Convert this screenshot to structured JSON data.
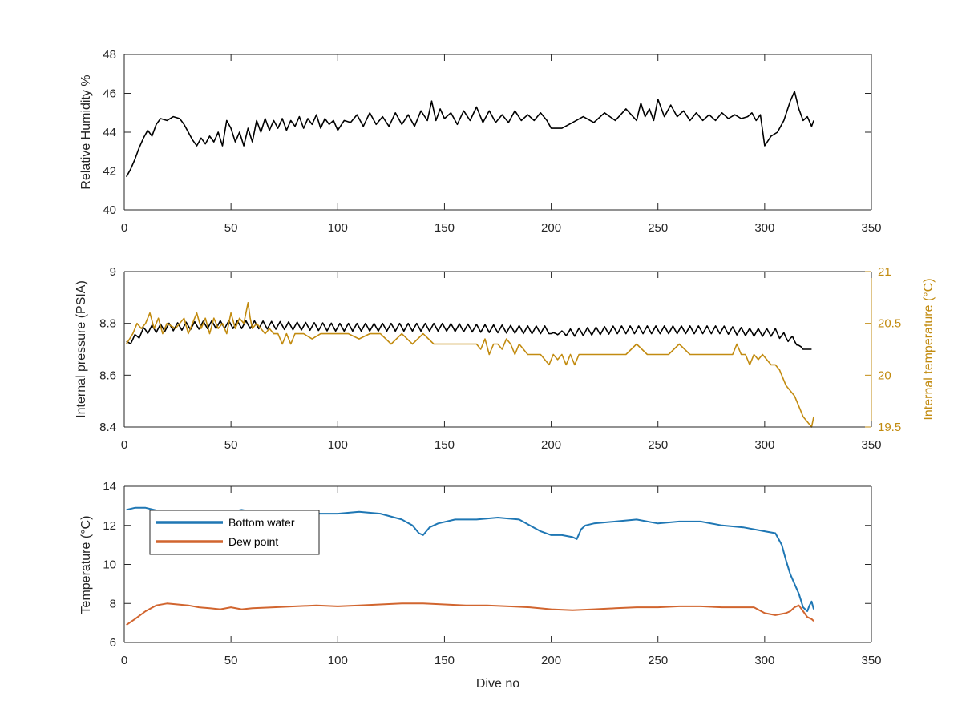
{
  "colors": {
    "black": "#000000",
    "temperature_right": "#C28B10",
    "bottom_water": "#1F77B4",
    "dew_point": "#D1652F",
    "axis": "#262626"
  },
  "chart_data": [
    {
      "type": "line",
      "id": "humidity",
      "title": "",
      "xlabel": "",
      "ylabel": "Relative Humidity %",
      "xlim": [
        0,
        350
      ],
      "ylim": [
        40,
        48
      ],
      "xticks": [
        0,
        50,
        100,
        150,
        200,
        250,
        300,
        350
      ],
      "yticks": [
        40,
        42,
        44,
        46,
        48
      ],
      "series": [
        {
          "color_key": "black",
          "x": [
            1,
            3,
            5,
            7,
            9,
            11,
            13,
            15,
            17,
            20,
            23,
            26,
            28,
            30,
            32,
            34,
            36,
            38,
            40,
            42,
            44,
            46,
            48,
            50,
            52,
            54,
            56,
            58,
            60,
            62,
            64,
            66,
            68,
            70,
            72,
            74,
            76,
            78,
            80,
            82,
            84,
            86,
            88,
            90,
            92,
            94,
            96,
            98,
            100,
            103,
            106,
            109,
            112,
            115,
            118,
            121,
            124,
            127,
            130,
            133,
            136,
            139,
            142,
            144,
            146,
            148,
            150,
            153,
            156,
            159,
            162,
            165,
            168,
            171,
            174,
            177,
            180,
            183,
            186,
            189,
            192,
            195,
            198,
            200,
            205,
            210,
            215,
            220,
            225,
            230,
            235,
            240,
            242,
            244,
            246,
            248,
            250,
            253,
            256,
            259,
            262,
            265,
            268,
            271,
            274,
            277,
            280,
            283,
            286,
            289,
            292,
            294,
            296,
            298,
            300,
            303,
            306,
            309,
            312,
            314,
            316,
            318,
            320,
            322,
            323
          ],
          "y": [
            41.7,
            42.1,
            42.6,
            43.2,
            43.7,
            44.1,
            43.8,
            44.4,
            44.7,
            44.6,
            44.8,
            44.7,
            44.4,
            44.0,
            43.6,
            43.3,
            43.7,
            43.4,
            43.8,
            43.5,
            44.0,
            43.3,
            44.6,
            44.2,
            43.5,
            44.0,
            43.3,
            44.2,
            43.5,
            44.6,
            44.0,
            44.7,
            44.1,
            44.6,
            44.2,
            44.7,
            44.1,
            44.6,
            44.3,
            44.8,
            44.2,
            44.7,
            44.4,
            44.9,
            44.2,
            44.7,
            44.4,
            44.6,
            44.1,
            44.6,
            44.5,
            44.9,
            44.3,
            45.0,
            44.4,
            44.8,
            44.3,
            45.0,
            44.4,
            44.9,
            44.3,
            45.1,
            44.6,
            45.6,
            44.6,
            45.2,
            44.7,
            45.0,
            44.4,
            45.1,
            44.6,
            45.3,
            44.5,
            45.1,
            44.5,
            44.9,
            44.5,
            45.1,
            44.6,
            44.9,
            44.6,
            45.0,
            44.6,
            44.2,
            44.2,
            44.5,
            44.8,
            44.5,
            45.0,
            44.6,
            45.2,
            44.6,
            45.5,
            44.8,
            45.2,
            44.6,
            45.7,
            44.8,
            45.4,
            44.8,
            45.1,
            44.6,
            45.0,
            44.6,
            44.9,
            44.6,
            45.0,
            44.7,
            44.9,
            44.7,
            44.8,
            45.0,
            44.6,
            44.9,
            43.3,
            43.8,
            44.0,
            44.6,
            45.6,
            46.1,
            45.2,
            44.6,
            44.8,
            44.3,
            44.6
          ]
        }
      ]
    },
    {
      "type": "line",
      "id": "pressure",
      "title": "",
      "xlabel": "",
      "ylabel": "Internal pressure (PSIA)",
      "ylabel_right": "Internal temperature (°C)",
      "xlim": [
        0,
        350
      ],
      "ylim": [
        8.4,
        9
      ],
      "ylim_right": [
        19.5,
        21
      ],
      "xticks": [
        0,
        50,
        100,
        150,
        200,
        250,
        300,
        350
      ],
      "yticks": [
        8.4,
        8.6,
        8.8,
        9
      ],
      "yticks_right": [
        19.5,
        20,
        20.5,
        21
      ],
      "series": [
        {
          "axis": "left",
          "color_key": "black",
          "oscillating": true,
          "x": [
            1,
            10,
            20,
            40,
            60,
            100,
            150,
            190,
            198,
            199,
            210,
            230,
            280,
            295,
            300,
            305,
            310,
            313,
            316,
            318,
            322
          ],
          "y": [
            8.73,
            8.79,
            8.8,
            8.81,
            8.81,
            8.8,
            8.8,
            8.79,
            8.79,
            8.76,
            8.78,
            8.79,
            8.79,
            8.78,
            8.78,
            8.78,
            8.76,
            8.75,
            8.72,
            8.7,
            8.7
          ],
          "amplitude": [
            0.02,
            0.03,
            0.03,
            0.03,
            0.03,
            0.03,
            0.03,
            0.03,
            0.03,
            0.0,
            0.03,
            0.03,
            0.03,
            0.03,
            0.03,
            0.03,
            0.03,
            0.02,
            0.01,
            0.0,
            0.0
          ]
        },
        {
          "axis": "right",
          "color_key": "temperature_right",
          "x": [
            1,
            4,
            6,
            8,
            10,
            12,
            14,
            16,
            18,
            20,
            24,
            28,
            30,
            32,
            34,
            36,
            38,
            40,
            42,
            44,
            46,
            48,
            50,
            52,
            54,
            56,
            57,
            58,
            59,
            60,
            62,
            64,
            66,
            68,
            70,
            72,
            74,
            76,
            78,
            80,
            84,
            88,
            92,
            96,
            100,
            105,
            110,
            115,
            120,
            125,
            130,
            135,
            140,
            145,
            150,
            155,
            160,
            165,
            167,
            169,
            171,
            173,
            175,
            177,
            179,
            181,
            183,
            185,
            187,
            189,
            191,
            193,
            195,
            197,
            199,
            201,
            203,
            205,
            207,
            209,
            211,
            213,
            215,
            220,
            225,
            230,
            235,
            240,
            245,
            250,
            255,
            260,
            265,
            270,
            275,
            280,
            285,
            287,
            289,
            291,
            293,
            295,
            297,
            299,
            301,
            303,
            305,
            307,
            310,
            312,
            314,
            316,
            318,
            320,
            322,
            323
          ],
          "y": [
            20.3,
            20.4,
            20.5,
            20.45,
            20.5,
            20.6,
            20.45,
            20.55,
            20.4,
            20.5,
            20.45,
            20.55,
            20.4,
            20.5,
            20.6,
            20.45,
            20.55,
            20.4,
            20.55,
            20.45,
            20.5,
            20.4,
            20.6,
            20.45,
            20.55,
            20.5,
            20.6,
            20.7,
            20.55,
            20.45,
            20.5,
            20.45,
            20.4,
            20.45,
            20.4,
            20.4,
            20.3,
            20.4,
            20.3,
            20.4,
            20.4,
            20.35,
            20.4,
            20.4,
            20.4,
            20.4,
            20.35,
            20.4,
            20.4,
            20.3,
            20.4,
            20.3,
            20.4,
            20.3,
            20.3,
            20.3,
            20.3,
            20.3,
            20.25,
            20.35,
            20.2,
            20.3,
            20.3,
            20.25,
            20.35,
            20.3,
            20.2,
            20.3,
            20.25,
            20.2,
            20.2,
            20.2,
            20.2,
            20.15,
            20.1,
            20.2,
            20.15,
            20.2,
            20.1,
            20.2,
            20.1,
            20.2,
            20.2,
            20.2,
            20.2,
            20.2,
            20.2,
            20.3,
            20.2,
            20.2,
            20.2,
            20.3,
            20.2,
            20.2,
            20.2,
            20.2,
            20.2,
            20.3,
            20.2,
            20.2,
            20.1,
            20.2,
            20.15,
            20.2,
            20.15,
            20.1,
            20.1,
            20.05,
            19.9,
            19.85,
            19.8,
            19.7,
            19.6,
            19.55,
            19.5,
            19.6
          ]
        }
      ]
    },
    {
      "type": "line",
      "id": "temperature",
      "title": "",
      "xlabel": "Dive no",
      "ylabel": "Temperature (°C)",
      "xlim": [
        0,
        350
      ],
      "ylim": [
        6,
        14
      ],
      "xticks": [
        0,
        50,
        100,
        150,
        200,
        250,
        300,
        350
      ],
      "yticks": [
        6,
        8,
        10,
        12,
        14
      ],
      "legend": {
        "location": "top-left"
      },
      "series": [
        {
          "name": "Bottom water",
          "color_key": "bottom_water",
          "x": [
            1,
            5,
            10,
            14,
            18,
            25,
            35,
            45,
            55,
            65,
            75,
            85,
            95,
            100,
            110,
            120,
            130,
            135,
            138,
            140,
            143,
            147,
            155,
            165,
            175,
            185,
            190,
            195,
            200,
            205,
            210,
            212,
            214,
            216,
            220,
            230,
            240,
            250,
            260,
            270,
            280,
            290,
            300,
            305,
            308,
            310,
            312,
            314,
            316,
            318,
            319,
            320,
            321,
            322,
            323
          ],
          "y": [
            12.8,
            12.9,
            12.9,
            12.8,
            12.7,
            12.7,
            12.75,
            12.6,
            12.8,
            12.6,
            12.7,
            12.6,
            12.6,
            12.6,
            12.7,
            12.6,
            12.3,
            12.0,
            11.6,
            11.5,
            11.9,
            12.1,
            12.3,
            12.3,
            12.4,
            12.3,
            12.0,
            11.7,
            11.5,
            11.5,
            11.4,
            11.3,
            11.8,
            12.0,
            12.1,
            12.2,
            12.3,
            12.1,
            12.2,
            12.2,
            12.0,
            11.9,
            11.7,
            11.6,
            11.0,
            10.2,
            9.5,
            9.0,
            8.5,
            7.8,
            7.7,
            7.6,
            7.9,
            8.1,
            7.7
          ]
        },
        {
          "name": "Dew point",
          "color_key": "dew_point",
          "x": [
            1,
            5,
            10,
            15,
            20,
            25,
            30,
            35,
            40,
            45,
            50,
            55,
            60,
            70,
            80,
            90,
            100,
            110,
            120,
            130,
            140,
            150,
            160,
            170,
            180,
            190,
            200,
            210,
            220,
            230,
            240,
            250,
            260,
            270,
            280,
            290,
            295,
            300,
            305,
            310,
            312,
            314,
            316,
            318,
            320,
            322,
            323
          ],
          "y": [
            6.9,
            7.2,
            7.6,
            7.9,
            8.0,
            7.95,
            7.9,
            7.8,
            7.75,
            7.7,
            7.8,
            7.7,
            7.75,
            7.8,
            7.85,
            7.9,
            7.85,
            7.9,
            7.95,
            8.0,
            8.0,
            7.95,
            7.9,
            7.9,
            7.85,
            7.8,
            7.7,
            7.65,
            7.7,
            7.75,
            7.8,
            7.8,
            7.85,
            7.85,
            7.8,
            7.8,
            7.8,
            7.5,
            7.4,
            7.5,
            7.6,
            7.8,
            7.9,
            7.6,
            7.3,
            7.2,
            7.1
          ]
        }
      ]
    }
  ]
}
